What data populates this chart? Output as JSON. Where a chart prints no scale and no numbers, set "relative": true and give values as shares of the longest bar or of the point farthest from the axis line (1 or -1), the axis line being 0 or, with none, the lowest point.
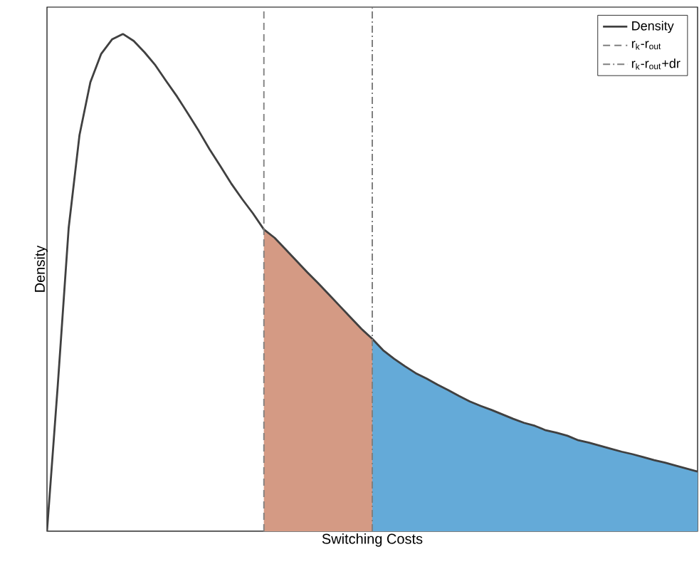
{
  "chart_data": {
    "type": "line",
    "xlabel": "Switching Costs",
    "ylabel": "Density",
    "relative": true,
    "tick_labels": false,
    "legend": "top right",
    "categories": [
      null,
      null,
      null,
      null,
      null,
      null,
      null,
      null,
      null,
      null,
      null,
      null,
      null,
      null,
      null,
      null,
      null,
      null,
      null,
      null,
      null,
      null,
      null,
      null,
      null,
      null,
      null,
      null,
      null,
      null,
      null,
      null,
      null,
      null,
      null,
      null,
      null,
      null,
      null,
      null,
      null,
      null,
      null,
      null,
      null,
      null,
      null,
      null,
      null,
      null,
      null,
      null,
      null,
      null,
      null,
      null,
      null,
      null,
      null,
      null,
      null
    ],
    "series": [
      {
        "type": "area",
        "color": "#d49a84",
        "values": [
          null,
          null,
          null,
          null,
          null,
          null,
          null,
          null,
          null,
          null,
          null,
          null,
          null,
          null,
          null,
          null,
          null,
          null,
          null,
          null,
          0.607,
          0.59,
          0.567,
          0.544,
          0.521,
          0.499,
          0.476,
          0.453,
          0.43,
          0.407,
          0.387,
          null,
          null,
          null,
          null,
          null,
          null,
          null,
          null,
          null,
          null,
          null,
          null,
          null,
          null,
          null,
          null,
          null,
          null,
          null,
          null,
          null,
          null,
          null,
          null,
          null,
          null,
          null,
          null,
          null,
          null
        ]
      },
      {
        "type": "area",
        "color": "#64aad8",
        "values": [
          null,
          null,
          null,
          null,
          null,
          null,
          null,
          null,
          null,
          null,
          null,
          null,
          null,
          null,
          null,
          null,
          null,
          null,
          null,
          null,
          null,
          null,
          null,
          null,
          null,
          null,
          null,
          null,
          null,
          null,
          0.387,
          0.364,
          0.347,
          0.332,
          0.318,
          0.307,
          0.295,
          0.284,
          0.272,
          0.261,
          0.252,
          0.244,
          0.235,
          0.226,
          0.218,
          0.212,
          0.203,
          0.198,
          0.192,
          0.183,
          0.178,
          0.172,
          0.166,
          0.16,
          0.155,
          0.149,
          0.143,
          0.138,
          0.132,
          0.126,
          0.12
        ]
      },
      {
        "name": "Density",
        "color": "#404040",
        "values": [
          0,
          0.295,
          0.61,
          0.797,
          0.903,
          0.96,
          0.989,
          1,
          0.986,
          0.963,
          0.937,
          0.905,
          0.874,
          0.84,
          0.805,
          0.768,
          0.734,
          0.699,
          0.668,
          0.639,
          0.607,
          0.59,
          0.567,
          0.544,
          0.521,
          0.499,
          0.476,
          0.453,
          0.43,
          0.407,
          0.387,
          0.364,
          0.347,
          0.332,
          0.318,
          0.307,
          0.295,
          0.284,
          0.272,
          0.261,
          0.252,
          0.244,
          0.235,
          0.226,
          0.218,
          0.212,
          0.203,
          0.198,
          0.192,
          0.183,
          0.178,
          0.172,
          0.166,
          0.16,
          0.155,
          0.149,
          0.143,
          0.138,
          0.132,
          0.126,
          0.12
        ]
      }
    ],
    "annotations": [
      "r$_{k}$-r$_{out}$",
      "r$_{k}$-r$_{out}$+dr"
    ]
  }
}
